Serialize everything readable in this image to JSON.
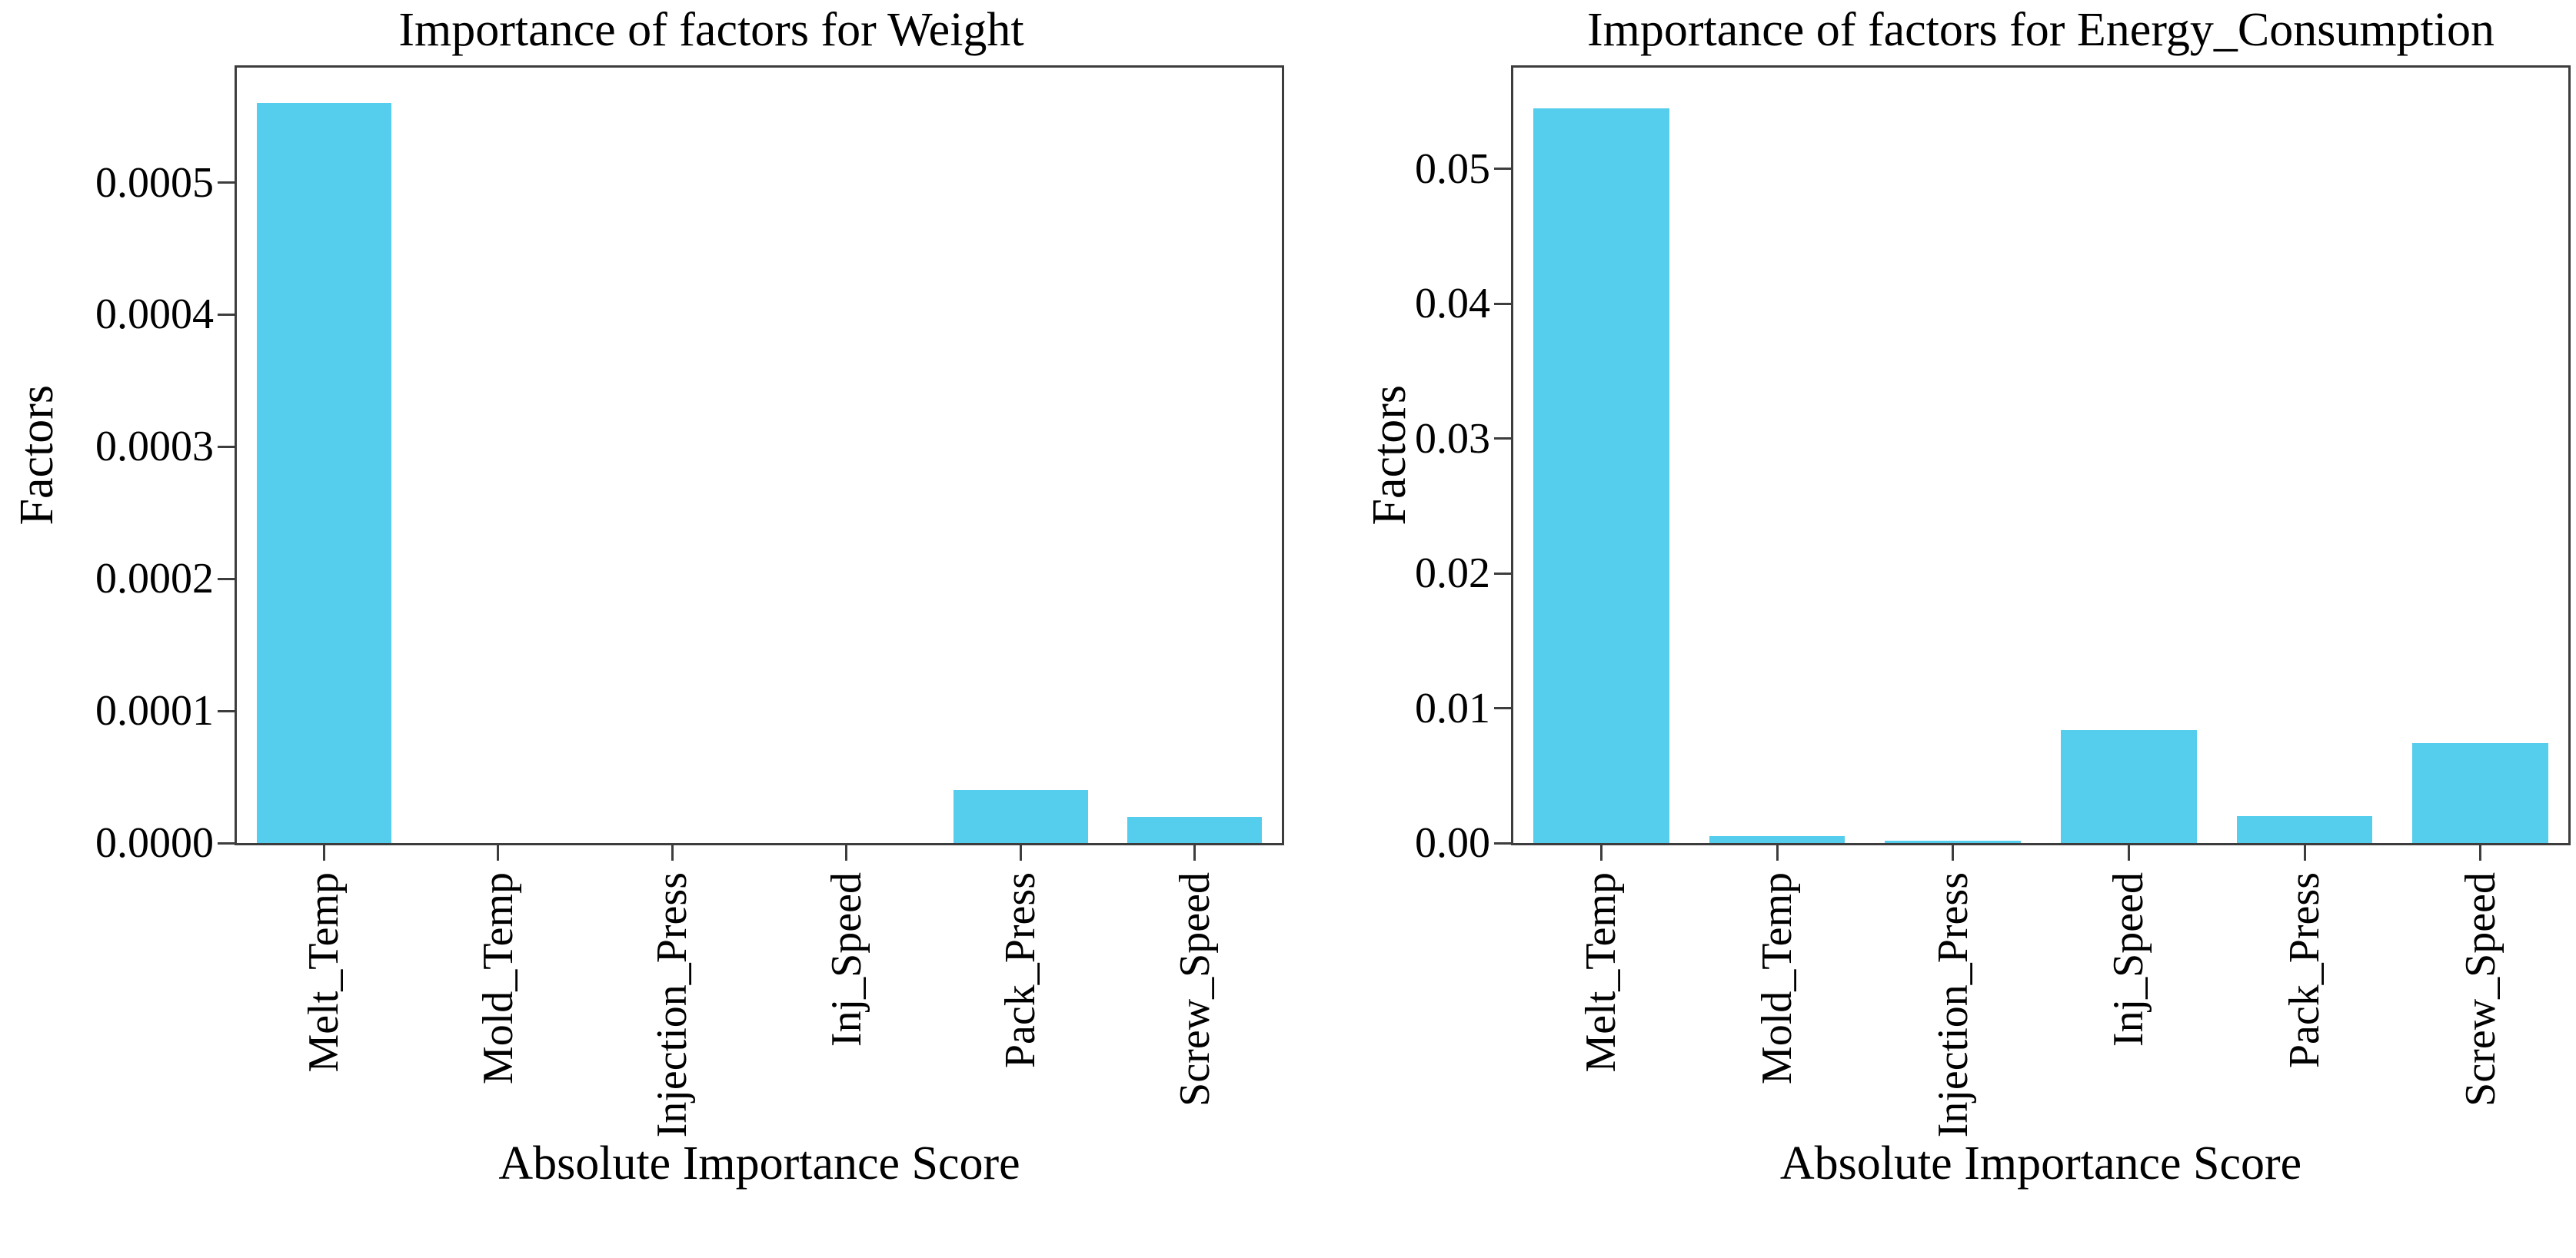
{
  "figure": {
    "background": "#ffffff",
    "bar_color": "#55cdec",
    "axis_color": "#3d3d3d",
    "text_color": "#000000"
  },
  "chart_data": [
    {
      "type": "bar",
      "title": "Importance of factors for Weight",
      "xlabel": "Absolute Importance Score",
      "ylabel": "Factors",
      "categories": [
        "Melt_Temp",
        "Mold_Temp",
        "Injection_Press",
        "Inj_Speed",
        "Pack_Press",
        "Screw_Speed"
      ],
      "values": [
        0.00056,
        0.0,
        0.0,
        0.0,
        4e-05,
        2e-05
      ],
      "yticks": [
        0.0,
        0.0001,
        0.0002,
        0.0003,
        0.0004,
        0.0005
      ],
      "ytick_labels": [
        "0.0000",
        "0.0001",
        "0.0002",
        "0.0003",
        "0.0004",
        "0.0005"
      ],
      "ylim": [
        0,
        0.000587
      ],
      "grid": false,
      "legend_position": "none"
    },
    {
      "type": "bar",
      "title": "Importance of factors for Energy_Consumption",
      "xlabel": "Absolute Importance Score",
      "ylabel": "Factors",
      "categories": [
        "Melt_Temp",
        "Mold_Temp",
        "Injection_Press",
        "Inj_Speed",
        "Pack_Press",
        "Screw_Speed"
      ],
      "values": [
        0.0545,
        0.0005,
        0.0002,
        0.0084,
        0.002,
        0.0074
      ],
      "yticks": [
        0.0,
        0.01,
        0.02,
        0.03,
        0.04,
        0.05
      ],
      "ytick_labels": [
        "0.00",
        "0.01",
        "0.02",
        "0.03",
        "0.04",
        "0.05"
      ],
      "ylim": [
        0,
        0.0575
      ],
      "grid": false,
      "legend_position": "none"
    }
  ]
}
